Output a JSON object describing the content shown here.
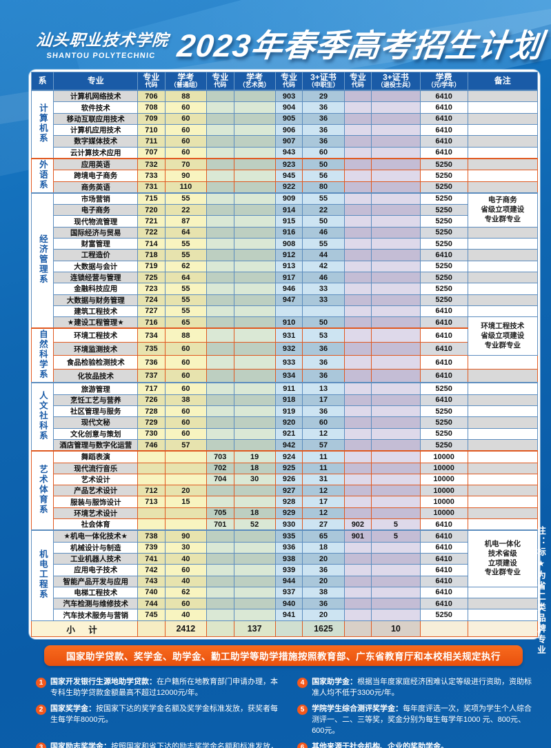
{
  "header": {
    "school_name": "汕头职业技术学院",
    "school_name_en": "SHANTOU POLYTECHNIC",
    "title": "2023年春季高考招生计划"
  },
  "side_note": "注：标★为省二类品牌专业",
  "banner": "国家助学贷款、奖学金、助学金、勤工助学等助学措施按照教育部、广东省教育厅和本校相关规定执行",
  "table": {
    "columns": [
      "系",
      "专业",
      "专业\n代码",
      "学考\n（普通组）",
      "专业\n代码",
      "学考\n（艺术类）",
      "专业\n代码",
      "3+证书\n（中职生）",
      "专业\n代码",
      "3+证书\n（退役士兵）",
      "学费\n（元/学年）",
      "备注"
    ],
    "departments": [
      {
        "name": "计算机系",
        "start": 0,
        "span": 6,
        "theme": "blue"
      },
      {
        "name": "外语系",
        "start": 6,
        "span": 3,
        "theme": "orange"
      },
      {
        "name": "经济管理系",
        "start": 9,
        "span": 12,
        "theme": "blue"
      },
      {
        "name": "自然科学系",
        "start": 21,
        "span": 4,
        "theme": "orange"
      },
      {
        "name": "人文社科系",
        "start": 25,
        "span": 6,
        "theme": "blue"
      },
      {
        "name": "艺术体育系",
        "start": 31,
        "span": 7,
        "theme": "orange"
      },
      {
        "name": "机电工程系",
        "start": 38,
        "span": 8,
        "theme": "blue"
      }
    ],
    "remarks": [
      {
        "start": 9,
        "span": 3,
        "text": "电子商务\n省级立项建设\n专业群专业"
      },
      {
        "start": 20,
        "span": 3,
        "text": "环境工程技术\n省级立项建设\n专业群专业"
      },
      {
        "start": 38,
        "span": 5,
        "text": "机电一体化\n技术省级\n立项建设\n专业群专业"
      }
    ],
    "rows": [
      {
        "major": "计算机网络技术",
        "c1": "706",
        "g": "88",
        "c2": "",
        "y": "",
        "c3": "903",
        "z": "29",
        "c4": "",
        "t": "",
        "fee": "6410"
      },
      {
        "major": "软件技术",
        "c1": "708",
        "g": "60",
        "c2": "",
        "y": "",
        "c3": "904",
        "z": "36",
        "c4": "",
        "t": "",
        "fee": "6410"
      },
      {
        "major": "移动互联应用技术",
        "c1": "709",
        "g": "60",
        "c2": "",
        "y": "",
        "c3": "905",
        "z": "36",
        "c4": "",
        "t": "",
        "fee": "6410"
      },
      {
        "major": "计算机应用技术",
        "c1": "710",
        "g": "60",
        "c2": "",
        "y": "",
        "c3": "906",
        "z": "36",
        "c4": "",
        "t": "",
        "fee": "6410"
      },
      {
        "major": "数字媒体技术",
        "c1": "711",
        "g": "60",
        "c2": "",
        "y": "",
        "c3": "907",
        "z": "36",
        "c4": "",
        "t": "",
        "fee": "6410"
      },
      {
        "major": "云计算技术应用",
        "c1": "707",
        "g": "60",
        "c2": "",
        "y": "",
        "c3": "943",
        "z": "60",
        "c4": "",
        "t": "",
        "fee": "6410"
      },
      {
        "major": "应用英语",
        "c1": "732",
        "g": "70",
        "c2": "",
        "y": "",
        "c3": "923",
        "z": "50",
        "c4": "",
        "t": "",
        "fee": "5250"
      },
      {
        "major": "跨境电子商务",
        "c1": "733",
        "g": "90",
        "c2": "",
        "y": "",
        "c3": "945",
        "z": "56",
        "c4": "",
        "t": "",
        "fee": "5250"
      },
      {
        "major": "商务英语",
        "c1": "731",
        "g": "110",
        "c2": "",
        "y": "",
        "c3": "922",
        "z": "80",
        "c4": "",
        "t": "",
        "fee": "5250"
      },
      {
        "major": "市场营销",
        "c1": "715",
        "g": "55",
        "c2": "",
        "y": "",
        "c3": "909",
        "z": "55",
        "c4": "",
        "t": "",
        "fee": "5250"
      },
      {
        "major": "电子商务",
        "c1": "720",
        "g": "22",
        "c2": "",
        "y": "",
        "c3": "914",
        "z": "22",
        "c4": "",
        "t": "",
        "fee": "5250"
      },
      {
        "major": "现代物流管理",
        "c1": "721",
        "g": "87",
        "c2": "",
        "y": "",
        "c3": "915",
        "z": "50",
        "c4": "",
        "t": "",
        "fee": "5250"
      },
      {
        "major": "国际经济与贸易",
        "c1": "722",
        "g": "64",
        "c2": "",
        "y": "",
        "c3": "916",
        "z": "46",
        "c4": "",
        "t": "",
        "fee": "5250"
      },
      {
        "major": "财富管理",
        "c1": "714",
        "g": "55",
        "c2": "",
        "y": "",
        "c3": "908",
        "z": "55",
        "c4": "",
        "t": "",
        "fee": "5250"
      },
      {
        "major": "工程造价",
        "c1": "718",
        "g": "55",
        "c2": "",
        "y": "",
        "c3": "912",
        "z": "44",
        "c4": "",
        "t": "",
        "fee": "6410"
      },
      {
        "major": "大数据与会计",
        "c1": "719",
        "g": "62",
        "c2": "",
        "y": "",
        "c3": "913",
        "z": "42",
        "c4": "",
        "t": "",
        "fee": "5250"
      },
      {
        "major": "连锁经营与管理",
        "c1": "725",
        "g": "64",
        "c2": "",
        "y": "",
        "c3": "917",
        "z": "46",
        "c4": "",
        "t": "",
        "fee": "5250"
      },
      {
        "major": "金融科技应用",
        "c1": "723",
        "g": "55",
        "c2": "",
        "y": "",
        "c3": "946",
        "z": "33",
        "c4": "",
        "t": "",
        "fee": "5250"
      },
      {
        "major": "大数据与财务管理",
        "c1": "724",
        "g": "55",
        "c2": "",
        "y": "",
        "c3": "947",
        "z": "33",
        "c4": "",
        "t": "",
        "fee": "5250"
      },
      {
        "major": "建筑工程技术",
        "c1": "727",
        "g": "55",
        "c2": "",
        "y": "",
        "c3": "",
        "z": "",
        "c4": "",
        "t": "",
        "fee": "6410"
      },
      {
        "major": "★建设工程管理★",
        "c1": "716",
        "g": "65",
        "c2": "",
        "y": "",
        "c3": "910",
        "z": "50",
        "c4": "",
        "t": "",
        "fee": "6410"
      },
      {
        "major": "环境工程技术",
        "c1": "734",
        "g": "88",
        "c2": "",
        "y": "",
        "c3": "931",
        "z": "53",
        "c4": "",
        "t": "",
        "fee": "6410"
      },
      {
        "major": "环境监测技术",
        "c1": "735",
        "g": "60",
        "c2": "",
        "y": "",
        "c3": "932",
        "z": "36",
        "c4": "",
        "t": "",
        "fee": "6410"
      },
      {
        "major": "食品检验检测技术",
        "c1": "736",
        "g": "60",
        "c2": "",
        "y": "",
        "c3": "933",
        "z": "36",
        "c4": "",
        "t": "",
        "fee": "6410"
      },
      {
        "major": "化妆品技术",
        "c1": "737",
        "g": "60",
        "c2": "",
        "y": "",
        "c3": "934",
        "z": "36",
        "c4": "",
        "t": "",
        "fee": "6410"
      },
      {
        "major": "旅游管理",
        "c1": "717",
        "g": "60",
        "c2": "",
        "y": "",
        "c3": "911",
        "z": "13",
        "c4": "",
        "t": "",
        "fee": "5250"
      },
      {
        "major": "烹饪工艺与营养",
        "c1": "726",
        "g": "38",
        "c2": "",
        "y": "",
        "c3": "918",
        "z": "17",
        "c4": "",
        "t": "",
        "fee": "6410"
      },
      {
        "major": "社区管理与服务",
        "c1": "728",
        "g": "60",
        "c2": "",
        "y": "",
        "c3": "919",
        "z": "36",
        "c4": "",
        "t": "",
        "fee": "5250"
      },
      {
        "major": "现代文秘",
        "c1": "729",
        "g": "60",
        "c2": "",
        "y": "",
        "c3": "920",
        "z": "60",
        "c4": "",
        "t": "",
        "fee": "5250"
      },
      {
        "major": "文化创意与策划",
        "c1": "730",
        "g": "60",
        "c2": "",
        "y": "",
        "c3": "921",
        "z": "12",
        "c4": "",
        "t": "",
        "fee": "5250"
      },
      {
        "major": "酒店管理与数字化运营",
        "c1": "746",
        "g": "57",
        "c2": "",
        "y": "",
        "c3": "942",
        "z": "57",
        "c4": "",
        "t": "",
        "fee": "5250"
      },
      {
        "major": "舞蹈表演",
        "c1": "",
        "g": "",
        "c2": "703",
        "y": "19",
        "c3": "924",
        "z": "11",
        "c4": "",
        "t": "",
        "fee": "10000"
      },
      {
        "major": "现代流行音乐",
        "c1": "",
        "g": "",
        "c2": "702",
        "y": "18",
        "c3": "925",
        "z": "11",
        "c4": "",
        "t": "",
        "fee": "10000"
      },
      {
        "major": "艺术设计",
        "c1": "",
        "g": "",
        "c2": "704",
        "y": "30",
        "c3": "926",
        "z": "31",
        "c4": "",
        "t": "",
        "fee": "10000"
      },
      {
        "major": "产品艺术设计",
        "c1": "712",
        "g": "20",
        "c2": "",
        "y": "",
        "c3": "927",
        "z": "12",
        "c4": "",
        "t": "",
        "fee": "10000"
      },
      {
        "major": "服装与服饰设计",
        "c1": "713",
        "g": "15",
        "c2": "",
        "y": "",
        "c3": "928",
        "z": "17",
        "c4": "",
        "t": "",
        "fee": "10000"
      },
      {
        "major": "环境艺术设计",
        "c1": "",
        "g": "",
        "c2": "705",
        "y": "18",
        "c3": "929",
        "z": "12",
        "c4": "",
        "t": "",
        "fee": "10000"
      },
      {
        "major": "社会体育",
        "c1": "",
        "g": "",
        "c2": "701",
        "y": "52",
        "c3": "930",
        "z": "27",
        "c4": "902",
        "t": "5",
        "fee": "6410"
      },
      {
        "major": "★机电一体化技术★",
        "c1": "738",
        "g": "90",
        "c2": "",
        "y": "",
        "c3": "935",
        "z": "65",
        "c4": "901",
        "t": "5",
        "fee": "6410"
      },
      {
        "major": "机械设计与制造",
        "c1": "739",
        "g": "30",
        "c2": "",
        "y": "",
        "c3": "936",
        "z": "18",
        "c4": "",
        "t": "",
        "fee": "6410"
      },
      {
        "major": "工业机器人技术",
        "c1": "741",
        "g": "40",
        "c2": "",
        "y": "",
        "c3": "938",
        "z": "20",
        "c4": "",
        "t": "",
        "fee": "6410"
      },
      {
        "major": "应用电子技术",
        "c1": "742",
        "g": "60",
        "c2": "",
        "y": "",
        "c3": "939",
        "z": "36",
        "c4": "",
        "t": "",
        "fee": "6410"
      },
      {
        "major": "智能产品开发与应用",
        "c1": "743",
        "g": "40",
        "c2": "",
        "y": "",
        "c3": "944",
        "z": "20",
        "c4": "",
        "t": "",
        "fee": "6410"
      },
      {
        "major": "电梯工程技术",
        "c1": "740",
        "g": "62",
        "c2": "",
        "y": "",
        "c3": "937",
        "z": "38",
        "c4": "",
        "t": "",
        "fee": "6410"
      },
      {
        "major": "汽车检测与维修技术",
        "c1": "744",
        "g": "60",
        "c2": "",
        "y": "",
        "c3": "940",
        "z": "36",
        "c4": "",
        "t": "",
        "fee": "6410"
      },
      {
        "major": "汽车技术服务与营销",
        "c1": "745",
        "g": "40",
        "c2": "",
        "y": "",
        "c3": "941",
        "z": "20",
        "c4": "",
        "t": "",
        "fee": "5250"
      }
    ],
    "subtotal": {
      "label": "小 计",
      "c1": "",
      "g": "2412",
      "c2": "",
      "y": "137",
      "c3": "",
      "z": "1625",
      "c4": "",
      "t": "10",
      "fee": "",
      "remark": ""
    }
  },
  "notes": [
    {
      "num": "1",
      "title": "国家开发银行生源地助学贷款：",
      "text": "在户籍所在地教育部门申请办理，本专科生助学贷款金额最高不超过12000元/年。"
    },
    {
      "num": "2",
      "title": "国家奖学金：",
      "text": "按国家下达的奖学金名额及奖学金标准发放，获奖者每生每学年8000元。"
    },
    {
      "num": "3",
      "title": "国家励志奖学金：",
      "text": "按照国家和省下达的励志奖学金名额和标准发放，获奖者每生每学年5000元。"
    },
    {
      "num": "4",
      "title": "国家助学金：",
      "text": "根据当年度家庭经济困难认定等级进行资助，资助标准人均不低于3300元/年。"
    },
    {
      "num": "5",
      "title": "学院学生综合测评奖学金：",
      "text": "每年度评选一次，奖项为学生个人综合测评一、二、三等奖，奖金分别为每生每学年1000 元、800元、600元。"
    },
    {
      "num": "6",
      "title": "其他来源于社会机构、企业的奖助学金。",
      "text": ""
    }
  ],
  "colors": {
    "page_blue": "#0d63ae",
    "header_blue": "#1a5ba7",
    "banner_orange": "#ef5a12",
    "section_border_blue": "#5b8cbe",
    "section_border_orange": "#e0581f",
    "col_yellow": "#f8f4c0",
    "col_green": "#dae8d5",
    "col_blue": "#cde4f2",
    "col_lavender": "#ded9ea"
  }
}
